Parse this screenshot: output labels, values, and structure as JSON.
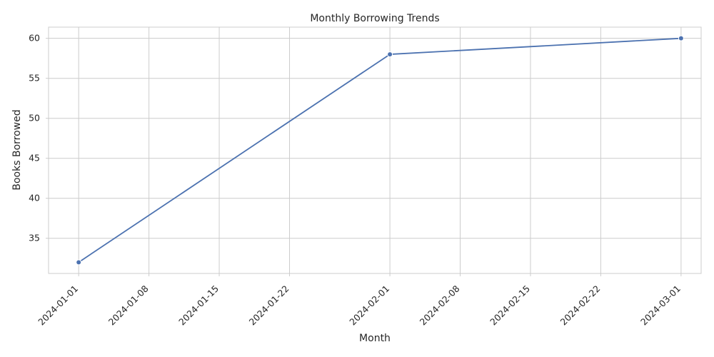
{
  "chart_data": {
    "type": "line",
    "title": "Monthly Borrowing Trends",
    "xlabel": "Month",
    "ylabel": "Books Borrowed",
    "x": [
      "2024-01-01",
      "2024-02-01",
      "2024-03-01"
    ],
    "series": [
      {
        "values": [
          32,
          58,
          60
        ],
        "color": "#4c72b0"
      }
    ],
    "xticks": [
      "2024-01-01",
      "2024-01-08",
      "2024-01-15",
      "2024-01-22",
      "2024-02-01",
      "2024-02-08",
      "2024-02-15",
      "2024-02-22",
      "2024-03-01"
    ],
    "yticks": [
      35,
      40,
      45,
      50,
      55,
      60
    ],
    "xlim": [
      "2023-12-29",
      "2024-03-03"
    ],
    "ylim": [
      30.6,
      61.4
    ],
    "grid": true,
    "colors": {
      "grid": "#cccccc",
      "axes": "#cccccc",
      "text": "#262626",
      "background": "#ffffff"
    }
  }
}
